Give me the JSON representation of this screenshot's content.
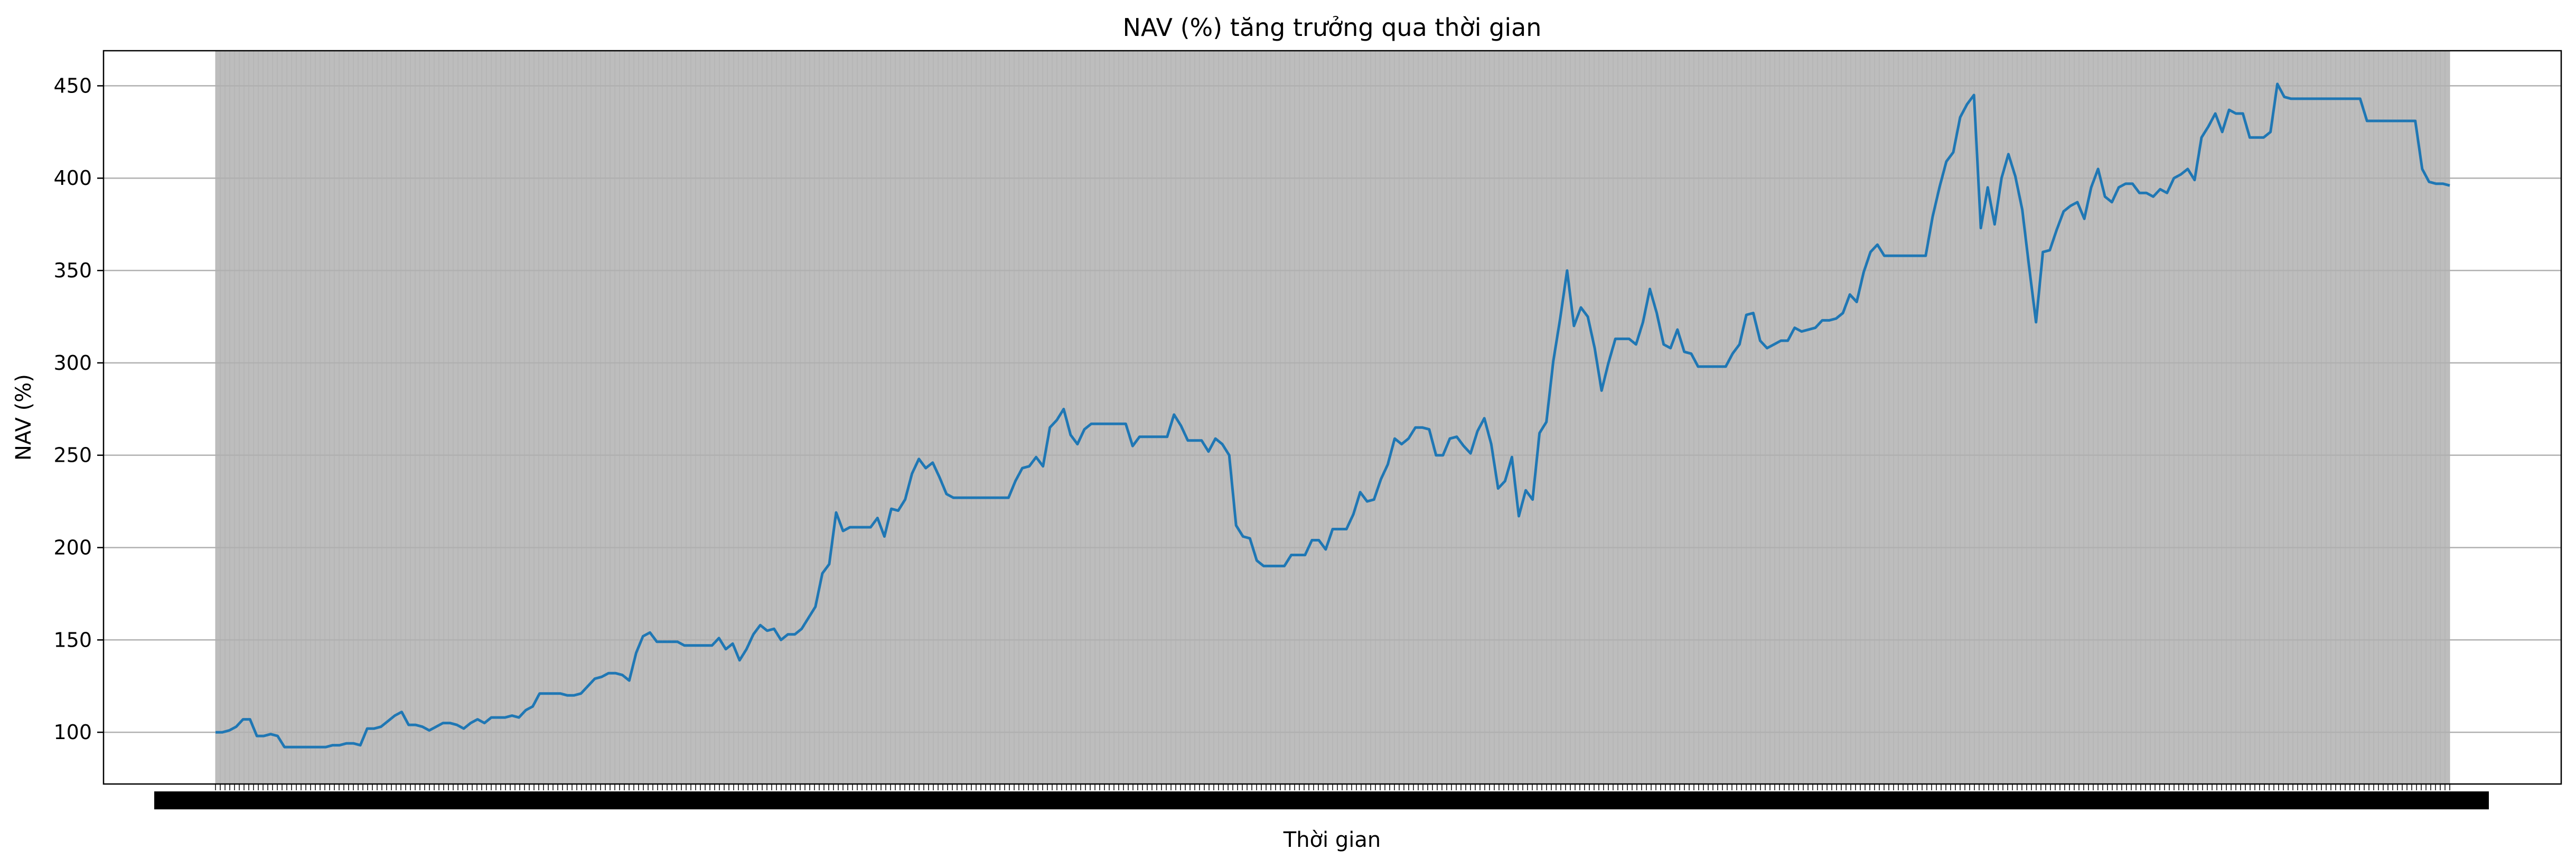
{
  "chart_data": {
    "type": "line",
    "title": "NAV (%) tăng trưởng qua thời gian",
    "xlabel": "Thời gian",
    "ylabel": "NAV (%)",
    "ylim": [
      72,
      469
    ],
    "yticks": [
      100,
      150,
      200,
      250,
      300,
      350,
      400,
      450
    ],
    "grid": {
      "y": true,
      "x": true,
      "note_x": "dense vertical gridlines at every date tick"
    },
    "colors": {
      "line": "#1f77b4",
      "grid": "#b0b0b0",
      "x_grid_fill": "#bdbdbd"
    },
    "x_tick_labels_overlapping": true,
    "series": [
      {
        "values": [
          100,
          100,
          101,
          103,
          107,
          107,
          98,
          98,
          99,
          98,
          92,
          92,
          92,
          92,
          92,
          92,
          92,
          93,
          93,
          94,
          94,
          93,
          102,
          102,
          103,
          106,
          109,
          111,
          104,
          104,
          103,
          101,
          103,
          105,
          105,
          104,
          102,
          105,
          107,
          105,
          108,
          108,
          108,
          109,
          108,
          112,
          114,
          121,
          121,
          121,
          121,
          120,
          120,
          121,
          125,
          129,
          130,
          132,
          132,
          131,
          128,
          143,
          152,
          154,
          149,
          149,
          149,
          149,
          147,
          147,
          147,
          147,
          147,
          151,
          145,
          148,
          139,
          145,
          153,
          158,
          155,
          156,
          150,
          153,
          153,
          156,
          162,
          168,
          186,
          191,
          219,
          209,
          211,
          211,
          211,
          211,
          216,
          206,
          221,
          220,
          226,
          240,
          248,
          243,
          246,
          238,
          229,
          227,
          227,
          227,
          227,
          227,
          227,
          227,
          227,
          227,
          236,
          243,
          244,
          249,
          244,
          265,
          269,
          275,
          261,
          256,
          264,
          267,
          267,
          267,
          267,
          267,
          267,
          255,
          260,
          260,
          260,
          260,
          260,
          272,
          266,
          258,
          258,
          258,
          252,
          259,
          256,
          250,
          212,
          206,
          205,
          193,
          190,
          190,
          190,
          190,
          196,
          196,
          196,
          204,
          204,
          199,
          210,
          210,
          210,
          218,
          230,
          225,
          226,
          237,
          245,
          259,
          256,
          259,
          265,
          265,
          264,
          250,
          250,
          259,
          260,
          255,
          251,
          263,
          270,
          256,
          232,
          236,
          249,
          217,
          231,
          226,
          262,
          268,
          301,
          324,
          350,
          320,
          330,
          325,
          308,
          285,
          300,
          313,
          313,
          313,
          310,
          322,
          340,
          327,
          310,
          308,
          318,
          306,
          305,
          298,
          298,
          298,
          298,
          298,
          305,
          310,
          326,
          327,
          312,
          308,
          310,
          312,
          312,
          319,
          317,
          318,
          319,
          323,
          323,
          324,
          327,
          337,
          333,
          349,
          360,
          364,
          358,
          358,
          358,
          358,
          358,
          358,
          358,
          379,
          395,
          409,
          414,
          433,
          440,
          445,
          373,
          395,
          375,
          400,
          413,
          401,
          383,
          352,
          322,
          360,
          361,
          372,
          382,
          385,
          387,
          378,
          395,
          405,
          390,
          387,
          395,
          397,
          397,
          392,
          392,
          390,
          394,
          392,
          400,
          402,
          405,
          399,
          422,
          428,
          435,
          425,
          437,
          435,
          435,
          422,
          422,
          422,
          425,
          451,
          444,
          443,
          443,
          443,
          443,
          443,
          443,
          443,
          443,
          443,
          443,
          443,
          431,
          431,
          431,
          431,
          431,
          431,
          431,
          431,
          405,
          398,
          397,
          397,
          396
        ]
      }
    ]
  }
}
